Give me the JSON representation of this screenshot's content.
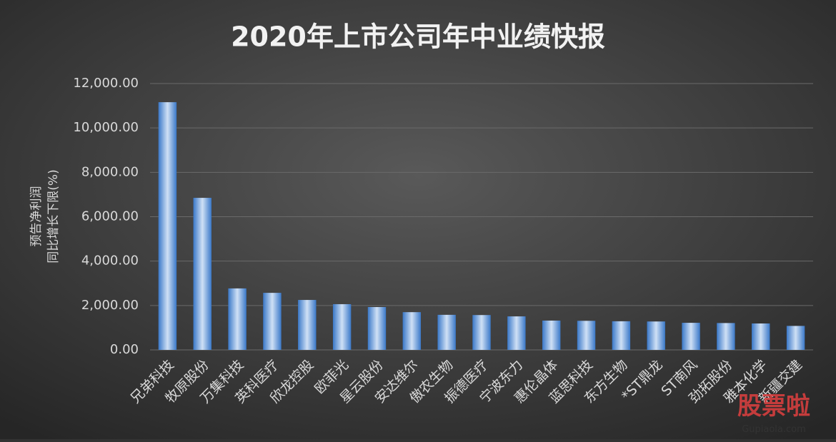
{
  "chart_data": {
    "type": "bar",
    "title": "2020年上市公司年中业绩快报",
    "y_label": [
      "预告净利润",
      "同比增长下限(%)"
    ],
    "categories": [
      "兄弟科技",
      "牧原股份",
      "万集科技",
      "英科医疗",
      "欣龙控股",
      "欧菲光",
      "星云股份",
      "安达维尔",
      "傲农生物",
      "振德医疗",
      "宁波东力",
      "惠伦晶体",
      "蓝思科技",
      "东方生物",
      "*ST鼎龙",
      "ST南风",
      "劲拓股份",
      "雅本化学",
      "新疆交建"
    ],
    "values": [
      11160,
      6850,
      2770,
      2570,
      2250,
      2060,
      1930,
      1700,
      1580,
      1570,
      1510,
      1320,
      1310,
      1290,
      1280,
      1220,
      1210,
      1190,
      1080
    ],
    "color": "#5b9bd5",
    "ylim": [
      0,
      12000
    ],
    "yticks": [
      {
        "value": 0,
        "label": "0.00"
      },
      {
        "value": 2000,
        "label": "2,000.00"
      },
      {
        "value": 4000,
        "label": "4,000.00"
      },
      {
        "value": 6000,
        "label": "6,000.00"
      },
      {
        "value": 8000,
        "label": "8,000.00"
      },
      {
        "value": 10000,
        "label": "10,000.00"
      },
      {
        "value": 12000,
        "label": "12,000.00"
      }
    ],
    "grid": true,
    "watermark": [
      "股票啦",
      "Gupiaola.com"
    ]
  }
}
